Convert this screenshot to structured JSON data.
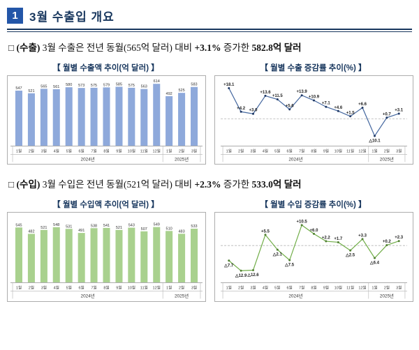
{
  "colors": {
    "badge": "#2356A8",
    "navy": "#17365D",
    "border": "#ADADAD"
  },
  "header": {
    "number": "1",
    "title": "3월 수출입 개요"
  },
  "sections": [
    {
      "bullet": "□",
      "label": "(수출)",
      "t1": "3월 수출은 전년 동월(565억 달러) 대비",
      "b1": "+3.1%",
      "t2": "증가한",
      "b2": "582.8억 달러"
    },
    {
      "bullet": "□",
      "label": "(수입)",
      "t1": "3월 수입은 전년 동월(521억 달러) 대비",
      "b1": "+2.3%",
      "t2": "증가한",
      "b2": "533.0억 달러"
    }
  ],
  "chart_data": [
    {
      "type": "bar",
      "title": "【 월별 수출액 추이(억 달러) 】",
      "categories": [
        "1월",
        "2월",
        "3월",
        "4월",
        "5월",
        "6월",
        "7월",
        "8월",
        "9월",
        "10월",
        "11월",
        "12월",
        "1월",
        "2월",
        "3월"
      ],
      "values": [
        547,
        521,
        565,
        561,
        580,
        573,
        575,
        579,
        585,
        575,
        563,
        614,
        492,
        525,
        583
      ],
      "year_groups": [
        {
          "label": "2024년",
          "span": 12
        },
        {
          "label": "2025년",
          "span": 3
        }
      ],
      "bar_color": "#8EA9DB",
      "axis_max": 650,
      "ylim": [
        0,
        650
      ]
    },
    {
      "type": "line",
      "title": "【 월별 수출 증감률 추이(%) 】",
      "categories": [
        "1월",
        "2월",
        "3월",
        "4월",
        "5월",
        "6월",
        "7월",
        "8월",
        "9월",
        "10월",
        "11월",
        "12월",
        "1월",
        "2월",
        "3월"
      ],
      "values": [
        18.1,
        4.2,
        3.0,
        13.6,
        11.5,
        5.6,
        13.9,
        10.9,
        7.1,
        4.6,
        1.5,
        6.6,
        -10.1,
        0.7,
        3.1
      ],
      "point_labels": [
        "+18.1",
        "+4.2",
        "+3.0",
        "+13.6",
        "+11.5",
        "+5.6",
        "+13.9",
        "+10.9",
        "+7.1",
        "+4.6",
        "+1.5",
        "+6.6",
        "△10.1",
        "+0.7",
        "+3.1"
      ],
      "year_groups": [
        {
          "label": "2024년",
          "span": 12
        },
        {
          "label": "2025년",
          "span": 3
        }
      ],
      "line_color": "#44679F",
      "marker_color": "#1F3864",
      "ymin": -16,
      "ymax": 22,
      "zero_line": true
    },
    {
      "type": "bar",
      "title": "【 월별 수입액 추이(억 달러) 】",
      "categories": [
        "1월",
        "2월",
        "3월",
        "4월",
        "5월",
        "6월",
        "7월",
        "8월",
        "9월",
        "10월",
        "11월",
        "12월",
        "1월",
        "2월",
        "3월"
      ],
      "values": [
        545,
        482,
        521,
        548,
        531,
        491,
        538,
        541,
        521,
        543,
        507,
        549,
        510,
        483,
        533
      ],
      "year_groups": [
        {
          "label": "2024년",
          "span": 12
        },
        {
          "label": "2025년",
          "span": 3
        }
      ],
      "bar_color": "#A9D18E",
      "axis_max": 650,
      "ylim": [
        0,
        650
      ]
    },
    {
      "type": "line",
      "title": "【 월별 수입 증감률 추이(%) 】",
      "categories": [
        "1월",
        "2월",
        "3월",
        "4월",
        "5월",
        "6월",
        "7월",
        "8월",
        "9월",
        "10월",
        "11월",
        "12월",
        "1월",
        "2월",
        "3월"
      ],
      "values": [
        -7.7,
        -12.9,
        -12.6,
        5.5,
        -2.1,
        -7.5,
        10.5,
        6.0,
        2.2,
        1.7,
        -2.5,
        3.3,
        -6.4,
        0.2,
        2.3
      ],
      "point_labels": [
        "△7.7",
        "△12.9",
        "△12.6",
        "+5.5",
        "△2.1",
        "△7.5",
        "+10.5",
        "+6.0",
        "+2.2",
        "+1.7",
        "△2.5",
        "+3.3",
        "△6.4",
        "+0.2",
        "+2.3"
      ],
      "year_groups": [
        {
          "label": "2024년",
          "span": 12
        },
        {
          "label": "2025년",
          "span": 3
        }
      ],
      "line_color": "#70AD47",
      "marker_color": "#538135",
      "ymin": -19,
      "ymax": 14,
      "zero_line": true
    }
  ]
}
